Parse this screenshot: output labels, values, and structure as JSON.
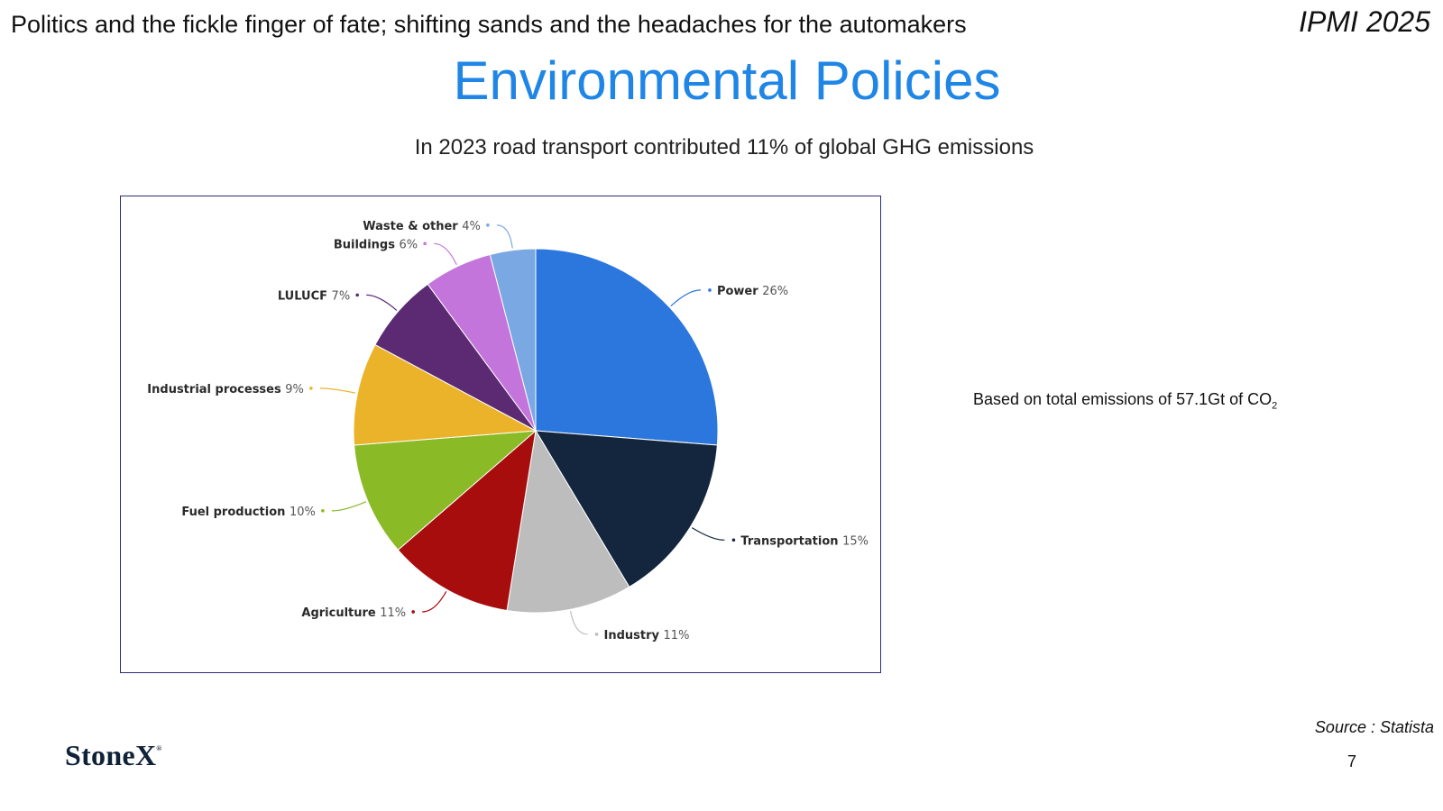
{
  "header": {
    "tagline": "Politics and the fickle finger of fate; shifting sands and the headaches for the automakers",
    "event": "IPMI 2025"
  },
  "title": "Environmental Policies",
  "subtitle": "In 2023 road transport contributed 11% of global GHG emissions",
  "note": {
    "text": "Based on total emissions of 57.1Gt of CO",
    "subscript": "2"
  },
  "source": "Source : Statista",
  "page_number": "7",
  "logo": {
    "text": "StoneX",
    "mark": "®"
  },
  "chart_data": {
    "type": "pie",
    "slices": [
      {
        "label": "Power",
        "value": 26,
        "display": "26%",
        "color": "#2b77dd"
      },
      {
        "label": "Transportation",
        "value": 15,
        "display": "15%",
        "color": "#13263d"
      },
      {
        "label": "Industry",
        "value": 11,
        "display": "11%",
        "color": "#bdbdbd"
      },
      {
        "label": "Agriculture",
        "value": 11,
        "display": "11%",
        "color": "#a80d0d"
      },
      {
        "label": "Fuel production",
        "value": 10,
        "display": "10%",
        "color": "#8aba26"
      },
      {
        "label": "Industrial processes",
        "value": 9,
        "display": "9%",
        "color": "#ebb32a"
      },
      {
        "label": "LULUCF",
        "value": 7,
        "display": "7%",
        "color": "#5b2a73"
      },
      {
        "label": "Buildings",
        "value": 6,
        "display": "6%",
        "color": "#c475db"
      },
      {
        "label": "Waste & other",
        "value": 4,
        "display": "4%",
        "color": "#7aa8e3"
      }
    ]
  }
}
